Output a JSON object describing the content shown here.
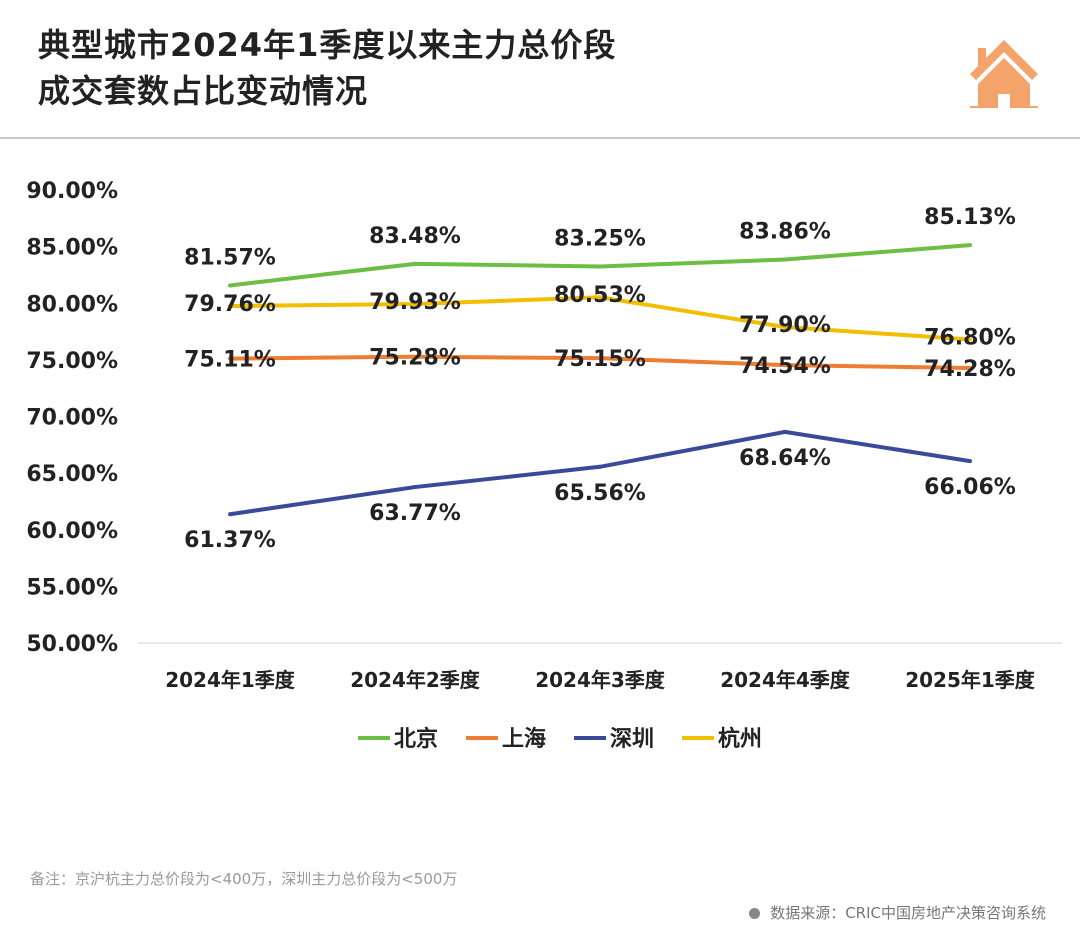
{
  "header": {
    "title_line1": "典型城市2024年1季度以来主力总价段",
    "title_line2": "成交套数占比变动情况",
    "icon": "house-icon"
  },
  "chart_data": {
    "type": "line",
    "categories": [
      "2024年1季度",
      "2024年2季度",
      "2024年3季度",
      "2024年4季度",
      "2025年1季度"
    ],
    "ylim": [
      50,
      90
    ],
    "yticks": [
      "50.00%",
      "55.00%",
      "60.00%",
      "65.00%",
      "70.00%",
      "75.00%",
      "80.00%",
      "85.00%",
      "90.00%"
    ],
    "grid": false,
    "legend_position": "bottom",
    "series": [
      {
        "name": "北京",
        "color": "#6DBE45",
        "values": [
          81.57,
          83.48,
          83.25,
          83.86,
          85.13
        ],
        "labels": [
          "81.57%",
          "83.48%",
          "83.25%",
          "83.86%",
          "85.13%"
        ]
      },
      {
        "name": "上海",
        "color": "#EE7D31",
        "values": [
          75.11,
          75.28,
          75.15,
          74.54,
          74.28
        ],
        "labels": [
          "75.11%",
          "75.28%",
          "75.15%",
          "74.54%",
          "74.28%"
        ]
      },
      {
        "name": "深圳",
        "color": "#3A4A9A",
        "values": [
          61.37,
          63.77,
          65.56,
          68.64,
          66.06
        ],
        "labels": [
          "61.37%",
          "63.77%",
          "65.56%",
          "68.64%",
          "66.06%"
        ]
      },
      {
        "name": "杭州",
        "color": "#F2BE00",
        "values": [
          79.76,
          79.93,
          80.53,
          77.9,
          76.8
        ],
        "labels": [
          "79.76%",
          "79.93%",
          "80.53%",
          "77.90%",
          "76.80%"
        ]
      }
    ]
  },
  "footer": {
    "note": "备注：京沪杭主力总价段为<400万，深圳主力总价段为<500万",
    "source": "数据来源：CRIC中国房地产决策咨询系统"
  }
}
